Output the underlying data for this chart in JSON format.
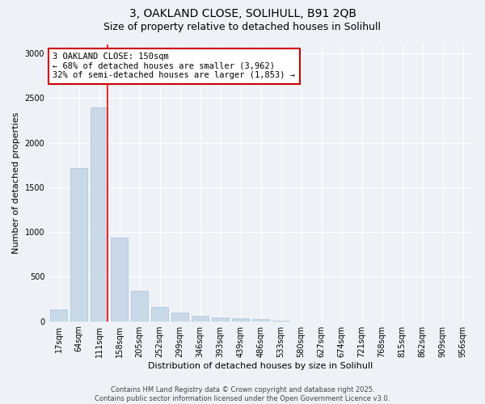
{
  "title_line1": "3, OAKLAND CLOSE, SOLIHULL, B91 2QB",
  "title_line2": "Size of property relative to detached houses in Solihull",
  "xlabel": "Distribution of detached houses by size in Solihull",
  "ylabel": "Number of detached properties",
  "categories": [
    "17sqm",
    "64sqm",
    "111sqm",
    "158sqm",
    "205sqm",
    "252sqm",
    "299sqm",
    "346sqm",
    "393sqm",
    "439sqm",
    "486sqm",
    "533sqm",
    "580sqm",
    "627sqm",
    "674sqm",
    "721sqm",
    "768sqm",
    "815sqm",
    "862sqm",
    "909sqm",
    "956sqm"
  ],
  "values": [
    130,
    1720,
    2390,
    940,
    340,
    160,
    95,
    60,
    45,
    30,
    20,
    5,
    0,
    0,
    0,
    0,
    0,
    0,
    0,
    0,
    0
  ],
  "bar_color": "#c9d9e8",
  "bar_edge_color": "#a8c0d4",
  "red_line_index": 2,
  "annotation_line1": "3 OAKLAND CLOSE: 150sqm",
  "annotation_line2": "← 68% of detached houses are smaller (3,962)",
  "annotation_line3": "32% of semi-detached houses are larger (1,853) →",
  "annotation_box_color": "#ffffff",
  "annotation_box_edge_color": "#cc0000",
  "ylim": [
    0,
    3100
  ],
  "yticks": [
    0,
    500,
    1000,
    1500,
    2000,
    2500,
    3000
  ],
  "background_color": "#eef2f7",
  "grid_color": "#ffffff",
  "footer": "Contains HM Land Registry data © Crown copyright and database right 2025.\nContains public sector information licensed under the Open Government Licence v3.0.",
  "title_fontsize": 10,
  "subtitle_fontsize": 9,
  "axis_label_fontsize": 8,
  "tick_fontsize": 7,
  "annotation_fontsize": 7.5,
  "footer_fontsize": 6
}
